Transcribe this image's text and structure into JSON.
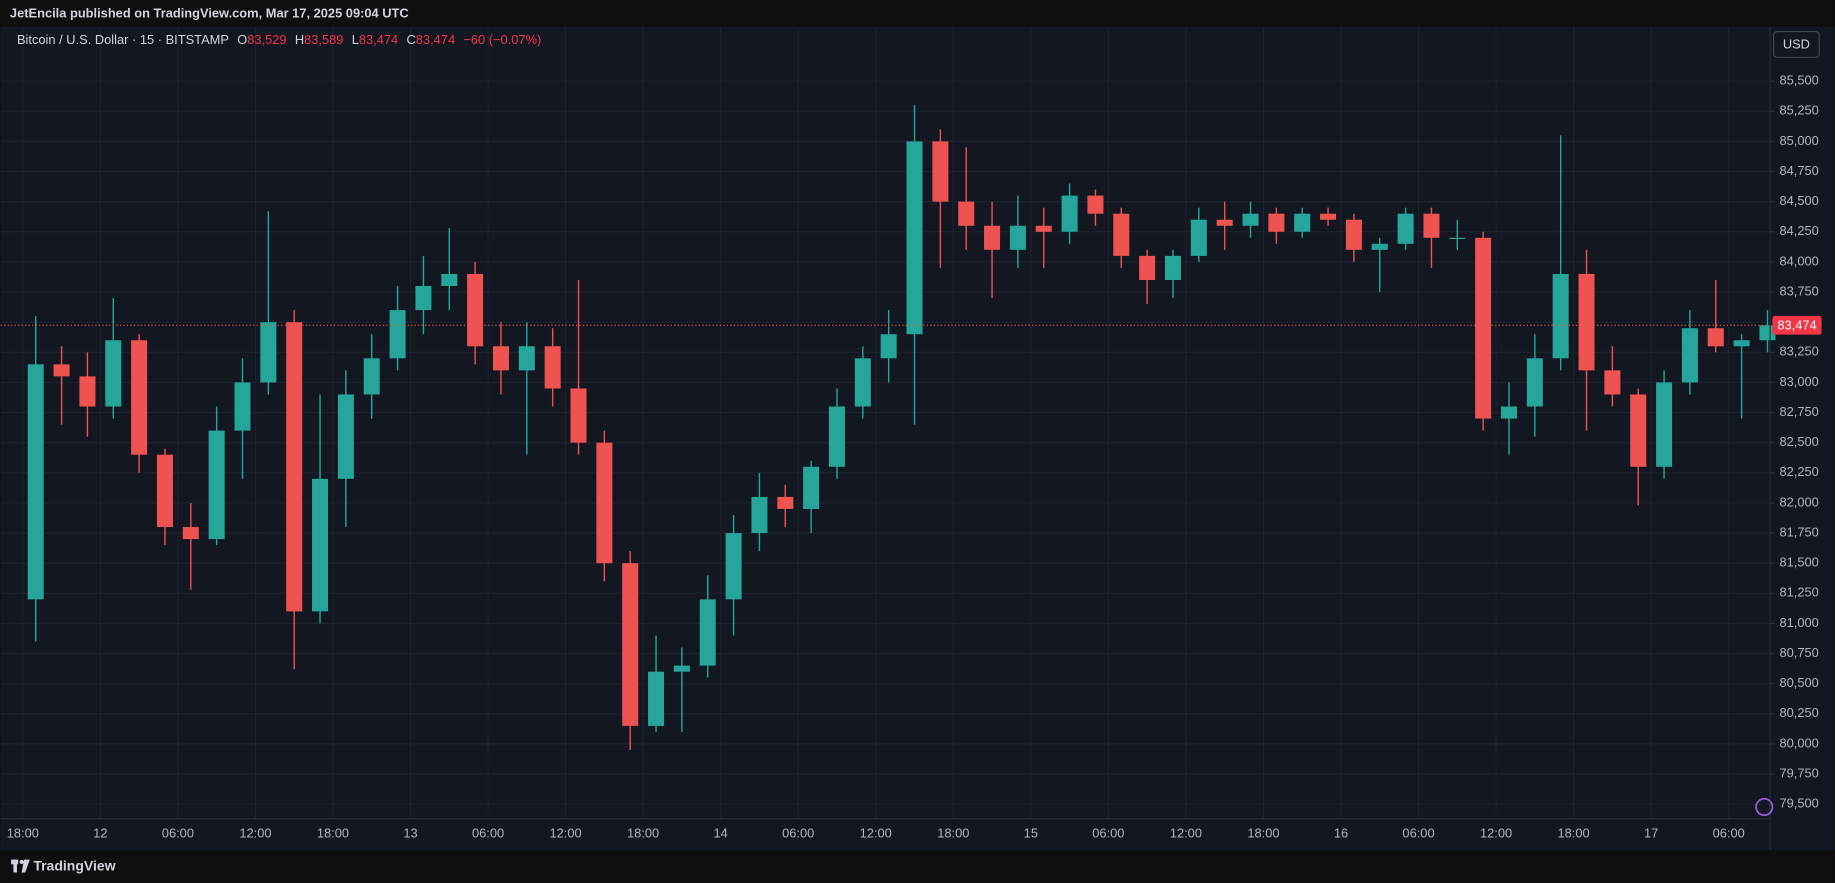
{
  "header": {
    "publisher": "JetEncila published on TradingView.com, Mar 17, 2025 09:04 UTC",
    "currency": "USD"
  },
  "legend": {
    "symbol": "Bitcoin / U.S. Dollar · 15 · BITSTAMP",
    "open_key": "O",
    "open": "83,529",
    "high_key": "H",
    "high": "83,589",
    "low_key": "L",
    "low": "83,474",
    "close_key": "C",
    "close": "83,474",
    "change": "−60 (−0.07%)"
  },
  "footer": {
    "brand": "TradingView"
  },
  "chart_data": {
    "type": "candlestick",
    "up_color": "#26a69a",
    "down_color": "#ef5350",
    "grid": true,
    "categories": [
      "18:00",
      null,
      null,
      "12",
      null,
      null,
      "06:00",
      null,
      null,
      "12:00",
      null,
      null,
      "18:00",
      null,
      null,
      "13",
      null,
      null,
      "06:00",
      null,
      null,
      "12:00",
      null,
      null,
      "18:00",
      null,
      null,
      "14",
      null,
      null,
      "06:00",
      null,
      null,
      "12:00",
      null,
      null,
      "18:00",
      null,
      null,
      "15",
      null,
      null,
      "06:00",
      null,
      null,
      "12:00",
      null,
      null,
      "18:00",
      null,
      null,
      "16",
      null,
      null,
      "06:00",
      null,
      null,
      "12:00",
      null,
      null,
      "18:00",
      null,
      null,
      "17",
      null,
      null,
      "06:00",
      null
    ],
    "open": [
      81200,
      83150,
      83050,
      82800,
      83350,
      82400,
      81800,
      81700,
      82600,
      83000,
      83500,
      81100,
      82200,
      82900,
      83200,
      83600,
      83800,
      83900,
      83300,
      83100,
      83300,
      82950,
      82500,
      81500,
      80150,
      80600,
      80650,
      81200,
      81750,
      82050,
      81950,
      82300,
      82800,
      83200,
      83400,
      85000,
      84500,
      84300,
      84100,
      84300,
      84250,
      84550,
      84400,
      84050,
      83850,
      84050,
      84350,
      84300,
      84400,
      84250,
      84400,
      84350,
      84100,
      84150,
      84400,
      84200,
      84200,
      82700,
      82800,
      83200,
      83900,
      83100,
      82900,
      82300,
      83000,
      83450,
      83300,
      83350
    ],
    "high": [
      83550,
      83300,
      83250,
      83700,
      83400,
      82450,
      82000,
      82800,
      83200,
      84420,
      83600,
      82900,
      83100,
      83400,
      83800,
      84050,
      84280,
      84000,
      83500,
      83500,
      83450,
      83850,
      82600,
      81600,
      80900,
      80800,
      81400,
      81900,
      82250,
      82150,
      82350,
      82950,
      83300,
      83600,
      85300,
      85100,
      84950,
      84500,
      84550,
      84450,
      84650,
      84600,
      84450,
      84100,
      84100,
      84450,
      84500,
      84500,
      84450,
      84450,
      84450,
      84400,
      84200,
      84450,
      84450,
      84350,
      84250,
      83000,
      83400,
      85050,
      84100,
      83300,
      82950,
      83100,
      83600,
      83850,
      83400,
      83600
    ],
    "low": [
      80850,
      82650,
      82550,
      82700,
      82250,
      81650,
      81280,
      81650,
      82200,
      82900,
      80620,
      81000,
      81800,
      82700,
      83100,
      83400,
      83600,
      83150,
      82900,
      82400,
      82800,
      82400,
      81350,
      79950,
      80100,
      80100,
      80550,
      80900,
      81600,
      81800,
      81750,
      82200,
      82700,
      83000,
      82650,
      83950,
      84100,
      83700,
      83950,
      83950,
      84150,
      84300,
      83950,
      83650,
      83700,
      84000,
      84100,
      84200,
      84150,
      84200,
      84300,
      84000,
      83750,
      84100,
      83950,
      84100,
      82600,
      82400,
      82550,
      83100,
      82600,
      82800,
      81980,
      82200,
      82900,
      83250,
      82700,
      83250
    ],
    "close": [
      83150,
      83050,
      82800,
      83350,
      82400,
      81800,
      81700,
      82600,
      83000,
      83500,
      81100,
      82200,
      82900,
      83200,
      83600,
      83800,
      83900,
      83300,
      83100,
      83300,
      82950,
      82500,
      81500,
      80150,
      80600,
      80650,
      81200,
      81750,
      82050,
      81950,
      82300,
      82800,
      83200,
      83400,
      85000,
      84500,
      84300,
      84100,
      84300,
      84250,
      84550,
      84400,
      84050,
      83850,
      84050,
      84350,
      84300,
      84400,
      84250,
      84400,
      84350,
      84100,
      84150,
      84400,
      84200,
      84200,
      82700,
      82800,
      83200,
      83900,
      83100,
      82900,
      82300,
      83000,
      83450,
      83300,
      83350,
      83474
    ],
    "last_price": {
      "value": 83474,
      "label": "83,474"
    },
    "ylim": [
      79380,
      85950
    ],
    "yticks": [
      {
        "value": 79500,
        "label": "79,500"
      },
      {
        "value": 79750,
        "label": "79,750"
      },
      {
        "value": 80000,
        "label": "80,000"
      },
      {
        "value": 80250,
        "label": "80,250"
      },
      {
        "value": 80500,
        "label": "80,500"
      },
      {
        "value": 80750,
        "label": "80,750"
      },
      {
        "value": 81000,
        "label": "81,000"
      },
      {
        "value": 81250,
        "label": "81,250"
      },
      {
        "value": 81500,
        "label": "81,500"
      },
      {
        "value": 81750,
        "label": "81,750"
      },
      {
        "value": 82000,
        "label": "82,000"
      },
      {
        "value": 82250,
        "label": "82,250"
      },
      {
        "value": 82500,
        "label": "82,500"
      },
      {
        "value": 82750,
        "label": "82,750"
      },
      {
        "value": 83000,
        "label": "83,000"
      },
      {
        "value": 83250,
        "label": "83,250"
      },
      {
        "value": 83500,
        "label": "83,500"
      },
      {
        "value": 83750,
        "label": "83,750"
      },
      {
        "value": 84000,
        "label": "84,000"
      },
      {
        "value": 84250,
        "label": "84,250"
      },
      {
        "value": 84500,
        "label": "84,500"
      },
      {
        "value": 84750,
        "label": "84,750"
      },
      {
        "value": 85000,
        "label": "85,000"
      },
      {
        "value": 85250,
        "label": "85,250"
      },
      {
        "value": 85500,
        "label": "85,500"
      }
    ]
  }
}
